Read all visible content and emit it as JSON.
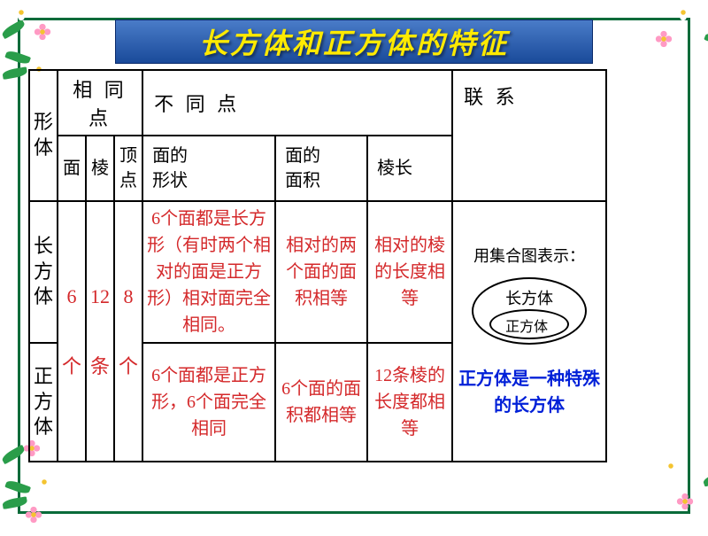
{
  "title": "长方体和正方体的特征",
  "headers": {
    "shape": "形体",
    "same": "相 同 点",
    "diff": "不 同 点",
    "relation": "联 系",
    "face": "面",
    "edge": "棱",
    "vertex": "顶点",
    "face_shape": "面的\n形状",
    "face_area": "面的\n面积",
    "edge_len": "棱长"
  },
  "counts": {
    "faces": "6\n\n个",
    "edges": "12\n\n条",
    "vertices": "8\n\n个"
  },
  "cuboid": {
    "name": "长方体",
    "face_shape": "6个面都是长方形（有时两个相对的面是正方形）相对面完全相同。",
    "face_area": "相对的两个面的面积相等",
    "edge_len": "相对的棱的长度相等"
  },
  "cube": {
    "name": "正方体",
    "face_shape": "6个面都是正方形，6个面完全相同",
    "face_area": "6个面的面积都相等",
    "edge_len": "12条棱的长度都相等"
  },
  "relation": {
    "intro": "用集合图表示：",
    "outer_label": "长方体",
    "inner_label": "正方体",
    "conclusion": "正方体是一种特殊的长方体"
  },
  "colors": {
    "frame": "#0a6b3a",
    "title_bg_top": "#4a7cc8",
    "title_bg_bot": "#1a4a9a",
    "title_text": "#ffea00",
    "red_text": "#d4282a",
    "blue_text": "#0020d8",
    "border": "#000000"
  },
  "layout": {
    "col_shape_w": 30,
    "col_face_w": 28,
    "col_edge_w": 30,
    "col_vert_w": 28,
    "col_fshape_w": 150,
    "col_farea_w": 104,
    "col_elen_w": 96,
    "col_rel_w": 174,
    "row_h1": 60,
    "row_h2": 74,
    "row_h3": 160,
    "row_h4": 134
  },
  "fonts": {
    "title_size": 32,
    "header_size": 22,
    "sub_size": 20,
    "body_size": 20,
    "relation_size": 18,
    "conclusion_size": 20
  }
}
